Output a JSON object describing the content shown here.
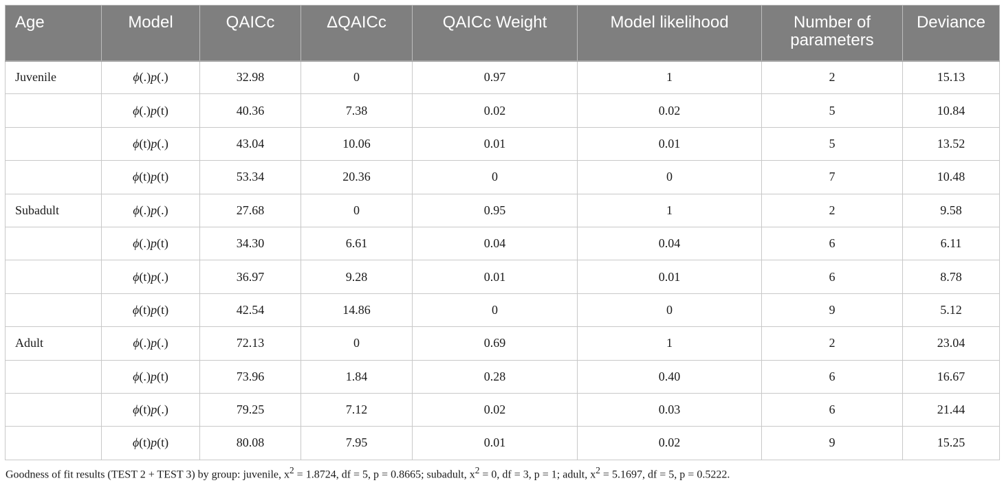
{
  "table": {
    "headers": [
      "Age",
      "Model",
      "QAICc",
      "ΔQAICc",
      "QAICc Weight",
      "Model likelihood",
      "Number of parameters",
      "Deviance"
    ],
    "rows": [
      {
        "age": "Juvenile",
        "phi": "(.)",
        "p": "(.)",
        "qaicc": "32.98",
        "dqaicc": "0",
        "weight": "0.97",
        "likelihood": "1",
        "params": "2",
        "deviance": "15.13"
      },
      {
        "age": "",
        "phi": "(.)",
        "p": "(t)",
        "qaicc": "40.36",
        "dqaicc": "7.38",
        "weight": "0.02",
        "likelihood": "0.02",
        "params": "5",
        "deviance": "10.84"
      },
      {
        "age": "",
        "phi": "(t)",
        "p": "(.)",
        "qaicc": "43.04",
        "dqaicc": "10.06",
        "weight": "0.01",
        "likelihood": "0.01",
        "params": "5",
        "deviance": "13.52"
      },
      {
        "age": "",
        "phi": "(t)",
        "p": "(t)",
        "qaicc": "53.34",
        "dqaicc": "20.36",
        "weight": "0",
        "likelihood": "0",
        "params": "7",
        "deviance": "10.48"
      },
      {
        "age": "Subadult",
        "phi": "(.)",
        "p": "(.)",
        "qaicc": "27.68",
        "dqaicc": "0",
        "weight": "0.95",
        "likelihood": "1",
        "params": "2",
        "deviance": "9.58"
      },
      {
        "age": "",
        "phi": "(.)",
        "p": "(t)",
        "qaicc": "34.30",
        "dqaicc": "6.61",
        "weight": "0.04",
        "likelihood": "0.04",
        "params": "6",
        "deviance": "6.11"
      },
      {
        "age": "",
        "phi": "(t)",
        "p": "(.)",
        "qaicc": "36.97",
        "dqaicc": "9.28",
        "weight": "0.01",
        "likelihood": "0.01",
        "params": "6",
        "deviance": "8.78"
      },
      {
        "age": "",
        "phi": "(t)",
        "p": "(t)",
        "qaicc": "42.54",
        "dqaicc": "14.86",
        "weight": "0",
        "likelihood": "0",
        "params": "9",
        "deviance": "5.12"
      },
      {
        "age": "Adult",
        "phi": "(.)",
        "p": "(.)",
        "qaicc": "72.13",
        "dqaicc": "0",
        "weight": "0.69",
        "likelihood": "1",
        "params": "2",
        "deviance": "23.04"
      },
      {
        "age": "",
        "phi": "(.)",
        "p": "(t)",
        "qaicc": "73.96",
        "dqaicc": "1.84",
        "weight": "0.28",
        "likelihood": "0.40",
        "params": "6",
        "deviance": "16.67"
      },
      {
        "age": "",
        "phi": "(t)",
        "p": "(.)",
        "qaicc": "79.25",
        "dqaicc": "7.12",
        "weight": "0.02",
        "likelihood": "0.03",
        "params": "6",
        "deviance": "21.44"
      },
      {
        "age": "",
        "phi": "(t)",
        "p": "(t)",
        "qaicc": "80.08",
        "dqaicc": "7.95",
        "weight": "0.01",
        "likelihood": "0.02",
        "params": "9",
        "deviance": "15.25"
      }
    ]
  },
  "footnote": {
    "part1": "Goodness of fit results (TEST 2 + TEST 3) by group: juvenile, x",
    "sup1": "2",
    "part2": " = 1.8724, df = 5, p = 0.8665; subadult, x",
    "sup2": "2",
    "part3": " = 0, df = 3, p = 1; adult, x",
    "sup3": "2",
    "part4": " = 5.1697, df = 5, p = 0.5222."
  },
  "colors": {
    "header_bg": "#7f7f7f",
    "header_text": "#ffffff",
    "grid_line": "#c8c8c8"
  }
}
